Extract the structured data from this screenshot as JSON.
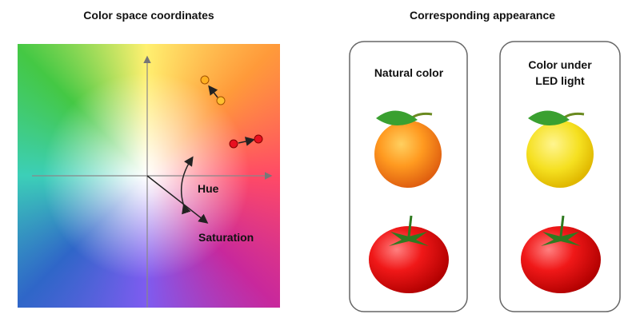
{
  "left": {
    "title": "Color space coordinates",
    "hue_label": "Hue",
    "saturation_label": "Saturation"
  },
  "right": {
    "title": "Corresponding appearance",
    "panels": [
      {
        "label": [
          "Natural color"
        ]
      },
      {
        "label": [
          "Color under",
          "LED light"
        ]
      }
    ]
  }
}
